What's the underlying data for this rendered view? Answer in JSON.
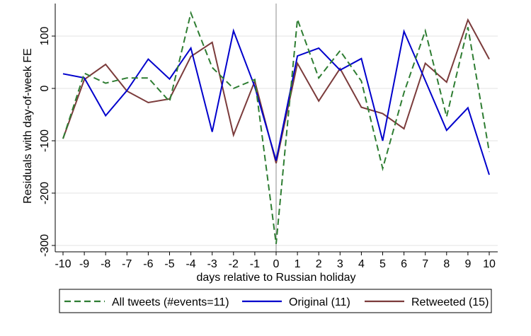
{
  "chart_data": {
    "type": "line",
    "title": "",
    "xlabel": "days relative to Russian holiday",
    "ylabel": "Residuals with day-of-week FE",
    "x": [
      -10,
      -9,
      -8,
      -7,
      -6,
      -5,
      -4,
      -3,
      -2,
      -1,
      0,
      1,
      2,
      3,
      4,
      5,
      6,
      7,
      8,
      9,
      10
    ],
    "xticks": [
      "-10",
      "-9",
      "-8",
      "-7",
      "-6",
      "-5",
      "-4",
      "-3",
      "-2",
      "-1",
      "0",
      "1",
      "2",
      "3",
      "4",
      "5",
      "6",
      "7",
      "8",
      "9",
      "10"
    ],
    "yticks": [
      {
        "value": 100,
        "label": "100"
      },
      {
        "value": 0,
        "label": "0"
      },
      {
        "value": -100,
        "label": "-100"
      },
      {
        "value": -200,
        "label": "-200"
      },
      {
        "value": -300,
        "label": "-300"
      }
    ],
    "xlim": [
      -10,
      10
    ],
    "ylim": [
      -305,
      160
    ],
    "grid": true,
    "reference_line_x": 0,
    "legend_position": "bottom",
    "series": [
      {
        "name": "All tweets (#events=11)",
        "color": "#2e7d32",
        "dash": "dashed",
        "values": [
          -96,
          29,
          10,
          20,
          20,
          -25,
          144,
          40,
          0,
          17,
          -297,
          132,
          20,
          72,
          14,
          -153,
          -8,
          110,
          -54,
          117,
          -121
        ]
      },
      {
        "name": "Original (11)",
        "color": "#0000cc",
        "dash": "solid",
        "values": [
          28,
          20,
          -52,
          -4,
          56,
          18,
          77,
          -83,
          110,
          3,
          -138,
          62,
          77,
          35,
          57,
          -100,
          109,
          15,
          -80,
          -37,
          -165
        ]
      },
      {
        "name": "Retweeted (15)",
        "color": "#7b3b3b",
        "dash": "solid",
        "values": [
          -96,
          17,
          46,
          -5,
          -27,
          -20,
          61,
          88,
          -89,
          14,
          -143,
          48,
          -24,
          38,
          -36,
          -48,
          -77,
          48,
          12,
          131,
          56
        ]
      }
    ]
  }
}
